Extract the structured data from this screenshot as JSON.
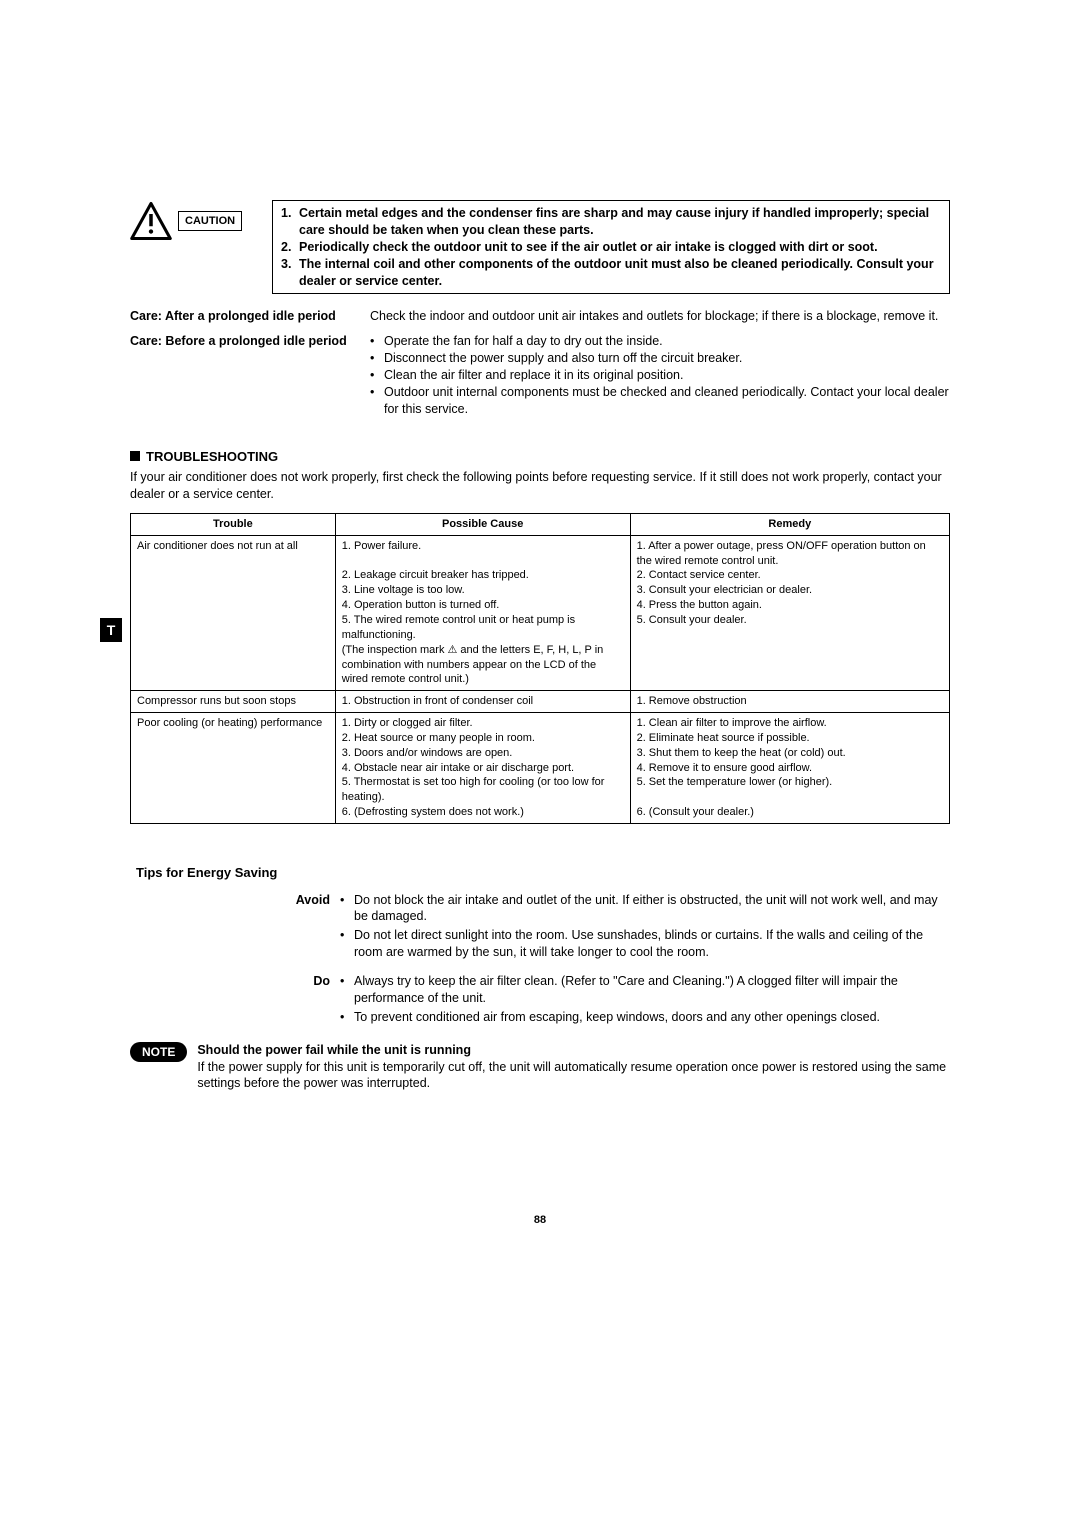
{
  "caution": {
    "label": "CAUTION",
    "items": [
      "Certain metal edges and the condenser fins are sharp and may cause injury if handled improperly; special care should be taken when you clean these parts.",
      "Periodically check the outdoor unit to see if the air outlet or air intake is clogged with dirt or soot.",
      "The internal coil and other components of the outdoor unit must also be cleaned periodically. Consult your dealer or service center."
    ]
  },
  "care": {
    "after": {
      "label": "Care: After a prolonged idle period",
      "text": "Check the indoor and outdoor unit air intakes and outlets for blockage; if there is a blockage, remove it."
    },
    "before": {
      "label": "Care: Before a prolonged idle period",
      "items": [
        "Operate the fan for half a day to dry out the inside.",
        "Disconnect the power supply and also turn off the circuit breaker.",
        "Clean the air filter and replace it in its original position.",
        "Outdoor unit internal components must be checked and cleaned periodically. Contact your local dealer for this service."
      ]
    }
  },
  "troubleshooting": {
    "heading": "TROUBLESHOOTING",
    "intro": "If your air conditioner does not work properly, first check the following points before requesting service. If it still does not work properly, contact your dealer or a service center.",
    "columns": [
      "Trouble",
      "Possible Cause",
      "Remedy"
    ],
    "rows": [
      {
        "trouble": "Air conditioner does not run at all",
        "cause": "1. Power failure.\n\n2. Leakage circuit breaker has tripped.\n3. Line voltage is too low.\n4. Operation button is turned off.\n5. The wired remote control unit or heat pump is malfunctioning.\n(The inspection mark ⚠ and the letters E, F, H, L, P in combination with numbers appear on the LCD of the wired remote control unit.)",
        "remedy": "1. After a power outage, press ON/OFF operation button on the wired remote control unit.\n2. Contact service center.\n3. Consult your electrician or dealer.\n4. Press the button again.\n5. Consult your dealer."
      },
      {
        "trouble": "Compressor runs but soon stops",
        "cause": "1. Obstruction in front of condenser coil",
        "remedy": "1. Remove obstruction"
      },
      {
        "trouble": "Poor cooling (or heating) performance",
        "cause": "1. Dirty or clogged air filter.\n2. Heat source or many people in room.\n3. Doors and/or windows are open.\n4. Obstacle near air intake or air discharge port.\n5. Thermostat is set too high for cooling (or too low for heating).\n6. (Defrosting system does not work.)",
        "remedy": "1. Clean air filter to improve the airflow.\n2. Eliminate heat source if possible.\n3. Shut them to keep the heat (or cold) out.\n4. Remove it to ensure good airflow.\n5. Set the temperature lower (or higher).\n\n6. (Consult your dealer.)"
      }
    ]
  },
  "tips": {
    "heading": "Tips for Energy Saving",
    "avoid": {
      "label": "Avoid",
      "items": [
        "Do not block the air intake and outlet of the unit. If either is obstructed, the unit will not work well, and may be damaged.",
        "Do not let direct sunlight into the room. Use sunshades, blinds or curtains. If the walls and ceiling of the room are warmed by the sun, it will take longer to cool the room."
      ]
    },
    "do": {
      "label": "Do",
      "items": [
        "Always try to keep the air filter clean. (Refer to \"Care and Cleaning.\") A clogged filter will impair the performance of the unit.",
        "To prevent conditioned air from escaping, keep windows, doors and any other openings closed."
      ]
    }
  },
  "note": {
    "badge": "NOTE",
    "title": "Should the power fail while the unit is running",
    "text": "If the power supply for this unit is temporarily cut off, the unit will automatically resume operation once power is restored using the same settings before the power was interrupted."
  },
  "side_tab": "T",
  "page_number": "88"
}
